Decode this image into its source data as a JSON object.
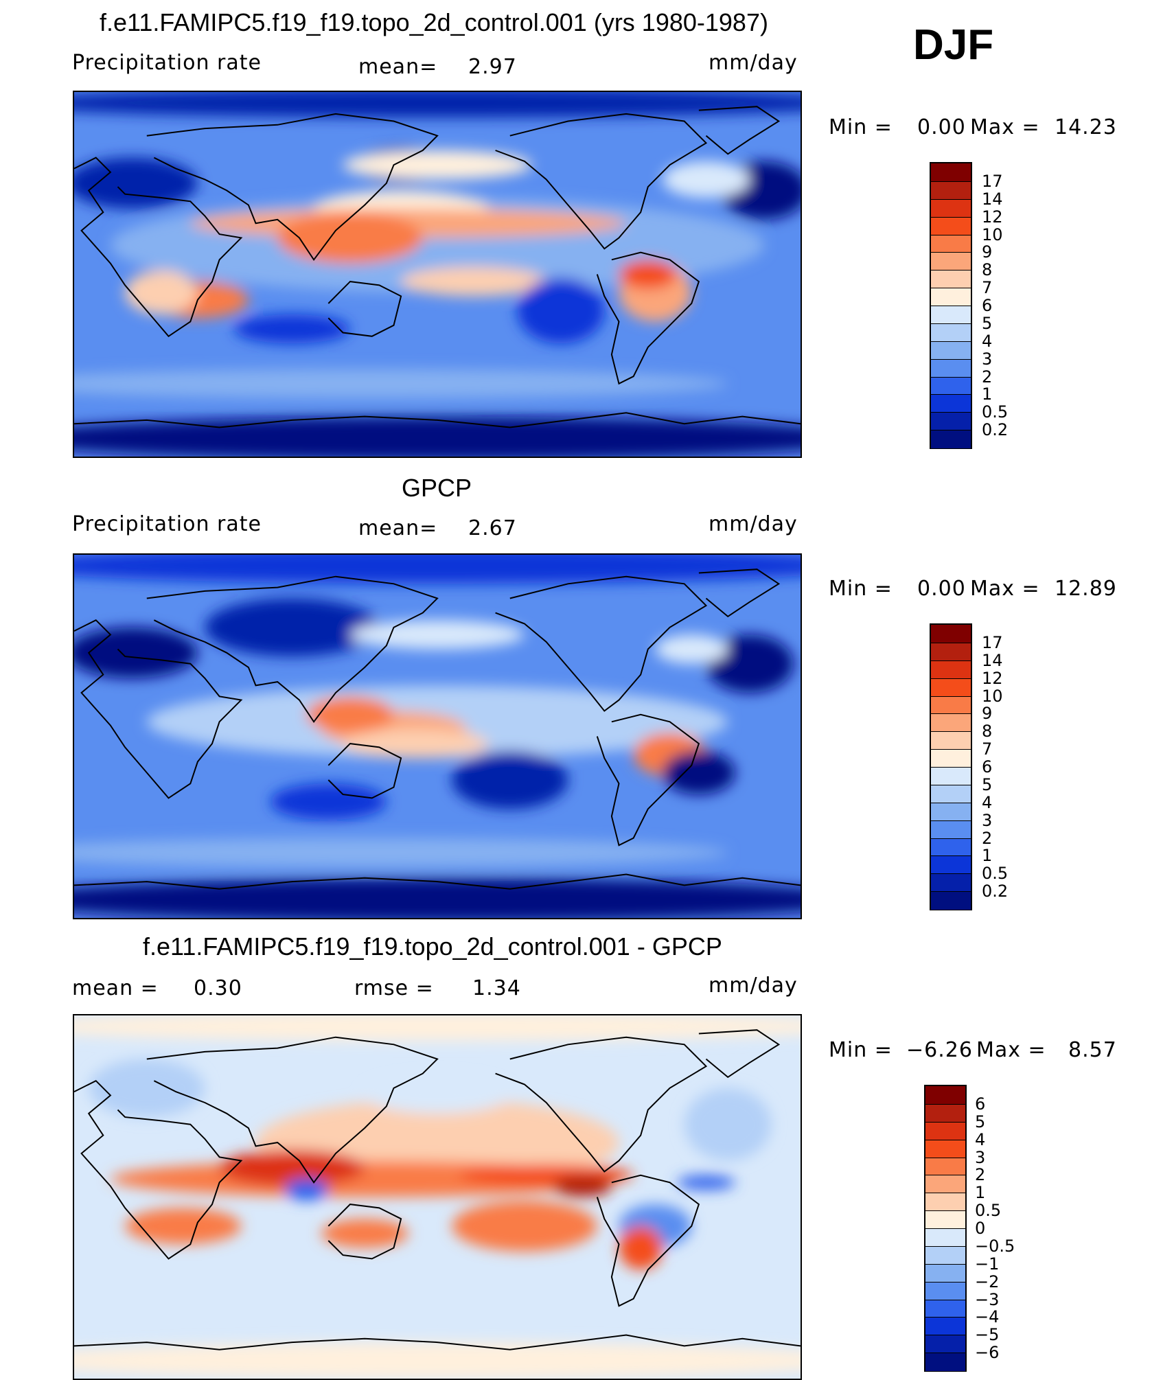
{
  "season": "DJF",
  "chart_data": [
    {
      "type": "heatmap",
      "title": "f.e11.FAMIPC5.f19_f19.topo_2d_control.001 (yrs 1980-1987)",
      "variable": "Precipitation rate",
      "stat1_label": "mean=",
      "stat1_value": "2.97",
      "units": "mm/day",
      "min_max": {
        "min_label": "Min =",
        "min": "0.00",
        "max_label": "Max =",
        "max": "14.23"
      },
      "colorbar": {
        "labels": [
          "17",
          "14",
          "12",
          "10",
          "9",
          "8",
          "7",
          "6",
          "5",
          "4",
          "3",
          "2",
          "1",
          "0.5",
          "0.2"
        ],
        "colors": [
          "#7f0000",
          "#b3200f",
          "#dd3312",
          "#f44d1a",
          "#f97b47",
          "#fba67a",
          "#fdcfb0",
          "#fff0dd",
          "#d9e9fb",
          "#b3d0f7",
          "#86b1f1",
          "#5a8ef0",
          "#2f62ec",
          "#0c35d8",
          "#0520aa",
          "#000f80"
        ]
      },
      "grid": false
    },
    {
      "type": "heatmap",
      "title": "GPCP",
      "variable": "Precipitation rate",
      "stat1_label": "mean=",
      "stat1_value": "2.67",
      "units": "mm/day",
      "min_max": {
        "min_label": "Min =",
        "min": "0.00",
        "max_label": "Max =",
        "max": "12.89"
      },
      "colorbar": {
        "labels": [
          "17",
          "14",
          "12",
          "10",
          "9",
          "8",
          "7",
          "6",
          "5",
          "4",
          "3",
          "2",
          "1",
          "0.5",
          "0.2"
        ],
        "colors": [
          "#7f0000",
          "#b3200f",
          "#dd3312",
          "#f44d1a",
          "#f97b47",
          "#fba67a",
          "#fdcfb0",
          "#fff0dd",
          "#d9e9fb",
          "#b3d0f7",
          "#86b1f1",
          "#5a8ef0",
          "#2f62ec",
          "#0c35d8",
          "#0520aa",
          "#000f80"
        ]
      },
      "grid": false
    },
    {
      "type": "heatmap",
      "title": "f.e11.FAMIPC5.f19_f19.topo_2d_control.001 - GPCP",
      "stat1_label": "mean =",
      "stat1_value": "0.30",
      "stat2_label": "rmse =",
      "stat2_value": "1.34",
      "units": "mm/day",
      "min_max": {
        "min_label": "Min =",
        "min": "−6.26",
        "max_label": "Max =",
        "max": "8.57"
      },
      "colorbar": {
        "labels": [
          "6",
          "5",
          "4",
          "3",
          "2",
          "1",
          "0.5",
          "0",
          "−0.5",
          "−1",
          "−2",
          "−3",
          "−4",
          "−5",
          "−6"
        ],
        "colors": [
          "#7f0000",
          "#b3200f",
          "#dd3312",
          "#f44d1a",
          "#f97b47",
          "#fba67a",
          "#fdcfb0",
          "#fff0dd",
          "#d9e9fb",
          "#b3d0f7",
          "#86b1f1",
          "#5a8ef0",
          "#2f62ec",
          "#0c35d8",
          "#0520aa",
          "#000f80"
        ]
      },
      "grid": false
    }
  ]
}
